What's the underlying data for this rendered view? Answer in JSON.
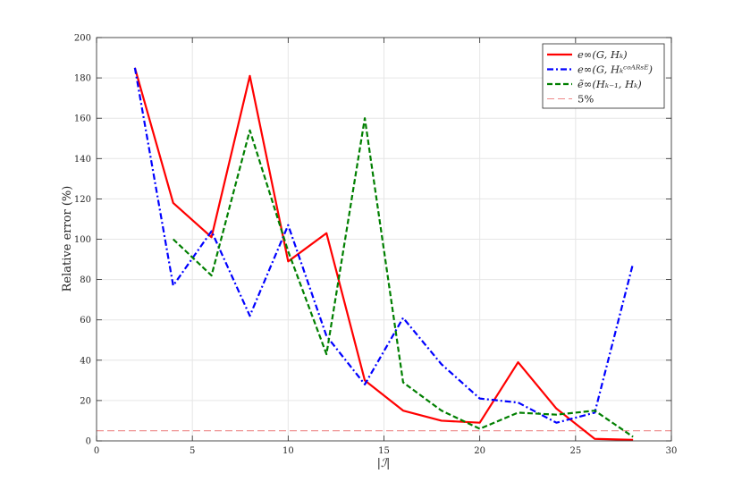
{
  "chart_data": {
    "type": "line",
    "title": "",
    "xlabel": "|ℐ|",
    "ylabel": "Relative error (%)",
    "xlim": [
      0,
      30
    ],
    "ylim": [
      0,
      200
    ],
    "xticks": [
      0,
      5,
      10,
      15,
      20,
      25,
      30
    ],
    "yticks": [
      0,
      20,
      40,
      60,
      80,
      100,
      120,
      140,
      160,
      180,
      200
    ],
    "grid": true,
    "legend_position": "top-right",
    "series": [
      {
        "name": "e∞(G, Hₖ)",
        "color": "#ff0000",
        "style": "solid",
        "x": [
          2,
          4,
          6,
          8,
          10,
          12,
          14,
          16,
          18,
          20,
          22,
          24,
          26,
          28
        ],
        "y": [
          185,
          118,
          101,
          181,
          89,
          103,
          30,
          15,
          10,
          9,
          39,
          16,
          1,
          0.5
        ]
      },
      {
        "name": "e∞(G, Hₖᶜᵒᴬᴿˢᴱ)",
        "color": "#0000ff",
        "style": "dashdot",
        "x": [
          2,
          4,
          6,
          8,
          10,
          12,
          14,
          16,
          18,
          20,
          22,
          24,
          26,
          28
        ],
        "y": [
          185,
          77,
          104,
          62,
          107,
          52,
          28,
          61,
          38,
          21,
          19,
          9,
          14,
          88
        ]
      },
      {
        "name": "ẽ∞(Hₖ₋₁, Hₖ)",
        "color": "#007f00",
        "style": "dashed",
        "x": [
          4,
          6,
          8,
          10,
          12,
          14,
          16,
          18,
          20,
          22,
          24,
          26,
          28
        ],
        "y": [
          100,
          82,
          154,
          94,
          43,
          160,
          29,
          15,
          6,
          14,
          13,
          15,
          2
        ]
      },
      {
        "name": "5%",
        "color": "#ee8888",
        "style": "dashed-thin",
        "x": [
          0,
          30
        ],
        "y": [
          5,
          5
        ]
      }
    ]
  }
}
